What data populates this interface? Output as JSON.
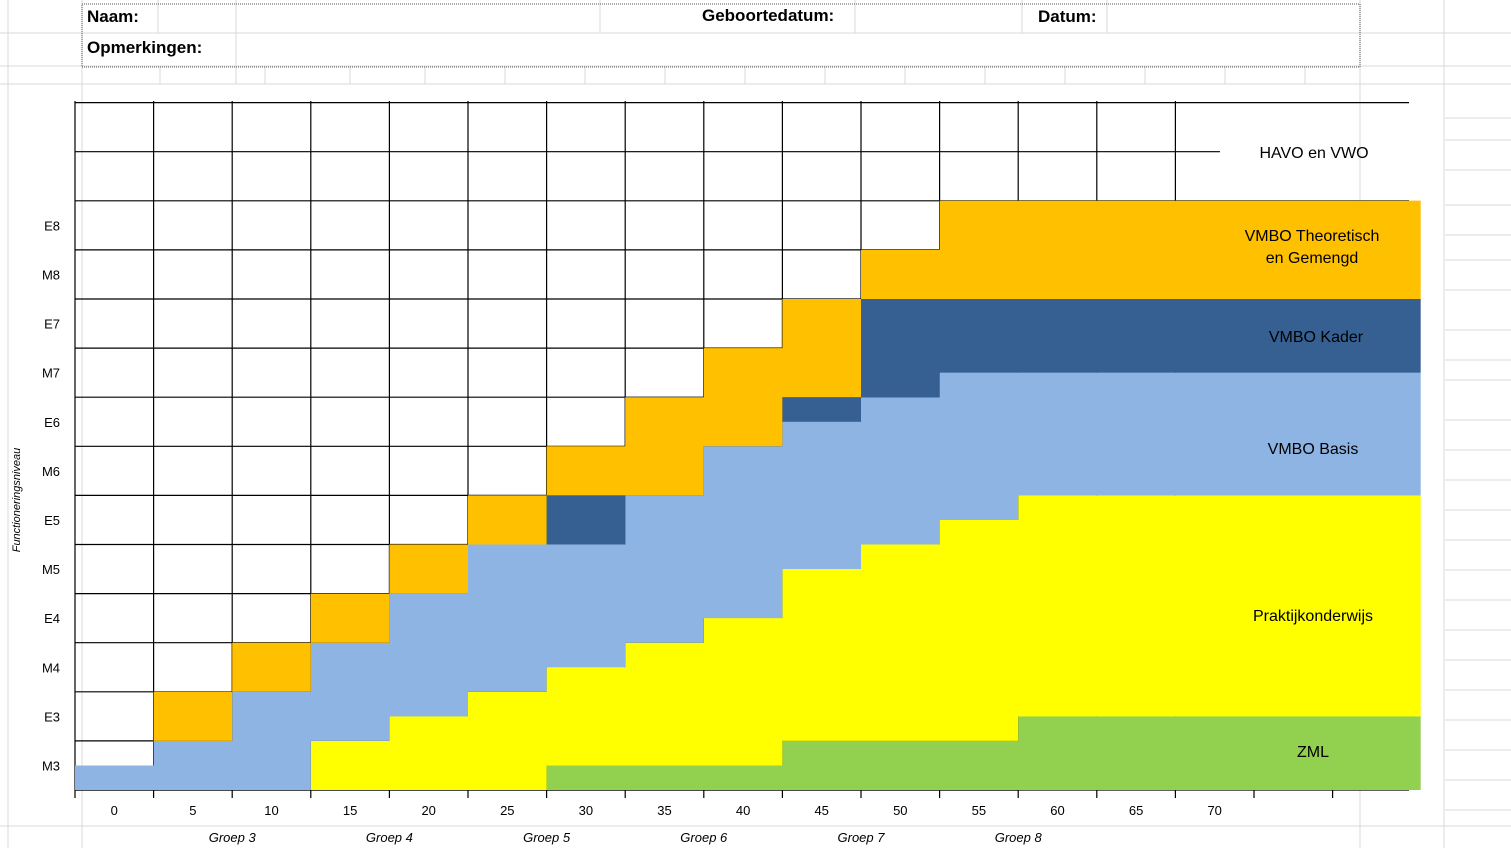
{
  "header": {
    "name_label": "Naam:",
    "birthdate_label": "Geboortedatum:",
    "date_label": "Datum:",
    "remarks_label": "Opmerkingen:"
  },
  "chart_data": {
    "type": "area",
    "title": "",
    "ylabel": "Functioneringsniveau",
    "xlabel": "",
    "x_ticks": [
      "0",
      "5",
      "10",
      "15",
      "20",
      "25",
      "30",
      "35",
      "40",
      "45",
      "50",
      "55",
      "60",
      "65",
      "70"
    ],
    "x_groups": [
      "Groep 3",
      "Groep 4",
      "Groep 5",
      "Groep 6",
      "Groep 7",
      "Groep 8"
    ],
    "y_levels": [
      "M3",
      "E3",
      "M4",
      "E4",
      "M5",
      "E5",
      "M6",
      "E6",
      "M7",
      "E7",
      "M8",
      "E8"
    ],
    "grid": true,
    "bands": [
      {
        "name": "ZML",
        "color": "#92D050"
      },
      {
        "name": "Praktijkonderwijs",
        "color": "#FFFF00"
      },
      {
        "name": "VMBO Basis",
        "color": "#8EB4E3"
      },
      {
        "name": "VMBO Kader",
        "color": "#366092"
      },
      {
        "name": "VMBO Theoretisch\nen Gemengd",
        "color": "#FFC000"
      },
      {
        "name": "HAVO en VWO",
        "color": "#FFFFFF"
      }
    ]
  }
}
